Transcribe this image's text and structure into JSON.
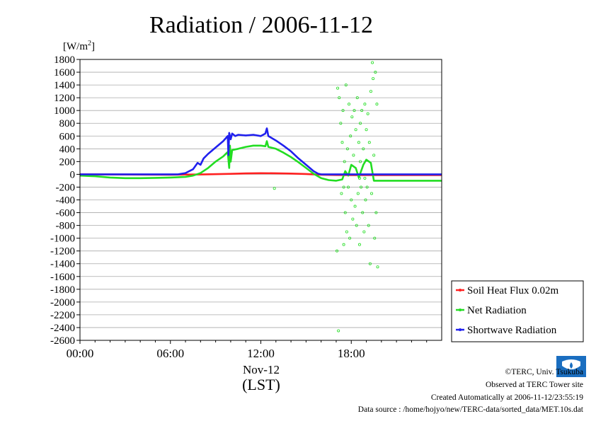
{
  "chart_data": {
    "type": "line",
    "title": "Radiation / 2006-11-12",
    "ylabel_unit": "[W/m",
    "ylabel_sup": "2",
    "ylabel_close": "]",
    "ylim": [
      -2600,
      1800
    ],
    "y_ticks": [
      "1800",
      "1600",
      "1400",
      "1200",
      "1000",
      "800",
      "600",
      "400",
      "200",
      "0",
      "-200",
      "-400",
      "-600",
      "-800",
      "-1000",
      "-1200",
      "-1400",
      "-1600",
      "-1800",
      "-2000",
      "-2200",
      "-2400",
      "-2600"
    ],
    "xlim": [
      0,
      24
    ],
    "x_ticks": [
      {
        "h": 0,
        "label": "00:00"
      },
      {
        "h": 6,
        "label": "06:00"
      },
      {
        "h": 12,
        "label": "12:00"
      },
      {
        "h": 18,
        "label": "18:00"
      }
    ],
    "date_label": "Nov-12",
    "xlabel": "(LST)",
    "grid": "horizontal",
    "legend_position": "bottom-right",
    "series": [
      {
        "name": "Soil Heat Flux 0.02m",
        "color": "#ff2020",
        "points": [
          [
            0,
            0
          ],
          [
            6,
            -5
          ],
          [
            8,
            -2
          ],
          [
            10,
            8
          ],
          [
            11,
            15
          ],
          [
            12,
            18
          ],
          [
            13,
            17
          ],
          [
            14,
            12
          ],
          [
            15,
            6
          ],
          [
            16,
            -5
          ],
          [
            17,
            -10
          ],
          [
            18,
            -12
          ],
          [
            20,
            -12
          ],
          [
            24,
            -12
          ]
        ]
      },
      {
        "name": "Net Radiation",
        "color": "#22dd22",
        "points": [
          [
            0,
            -20
          ],
          [
            1,
            -30
          ],
          [
            2,
            -50
          ],
          [
            3,
            -60
          ],
          [
            4,
            -60
          ],
          [
            5,
            -55
          ],
          [
            6,
            -50
          ],
          [
            7,
            -40
          ],
          [
            7.5,
            -20
          ],
          [
            8,
            20
          ],
          [
            8.5,
            100
          ],
          [
            9,
            200
          ],
          [
            9.5,
            280
          ],
          [
            9.8,
            350
          ],
          [
            9.9,
            100
          ],
          [
            9.95,
            450
          ],
          [
            10,
            200
          ],
          [
            10.1,
            380
          ],
          [
            10.5,
            400
          ],
          [
            11,
            430
          ],
          [
            11.5,
            450
          ],
          [
            12,
            450
          ],
          [
            12.3,
            440
          ],
          [
            12.4,
            520
          ],
          [
            12.5,
            430
          ],
          [
            13,
            400
          ],
          [
            13.5,
            340
          ],
          [
            14,
            270
          ],
          [
            14.5,
            190
          ],
          [
            15,
            100
          ],
          [
            15.5,
            10
          ],
          [
            16,
            -60
          ],
          [
            16.5,
            -90
          ],
          [
            17,
            -100
          ],
          [
            17.4,
            -80
          ],
          [
            17.6,
            50
          ],
          [
            17.8,
            -20
          ],
          [
            18,
            150
          ],
          [
            18.3,
            100
          ],
          [
            18.5,
            -50
          ],
          [
            18.8,
            150
          ],
          [
            19,
            230
          ],
          [
            19.3,
            180
          ],
          [
            19.5,
            -100
          ],
          [
            20,
            -100
          ],
          [
            21,
            -100
          ],
          [
            22,
            -100
          ],
          [
            23,
            -100
          ],
          [
            24,
            -100
          ]
        ]
      },
      {
        "name": "Shortwave Radiation",
        "color": "#2020ee",
        "points": [
          [
            0,
            0
          ],
          [
            6.5,
            0
          ],
          [
            7,
            20
          ],
          [
            7.5,
            80
          ],
          [
            7.8,
            180
          ],
          [
            8,
            150
          ],
          [
            8.2,
            250
          ],
          [
            8.5,
            320
          ],
          [
            9,
            420
          ],
          [
            9.5,
            520
          ],
          [
            9.8,
            600
          ],
          [
            9.85,
            300
          ],
          [
            9.9,
            650
          ],
          [
            10,
            550
          ],
          [
            10.1,
            640
          ],
          [
            10.3,
            600
          ],
          [
            10.5,
            620
          ],
          [
            11,
            610
          ],
          [
            11.5,
            620
          ],
          [
            12,
            600
          ],
          [
            12.3,
            640
          ],
          [
            12.4,
            720
          ],
          [
            12.5,
            600
          ],
          [
            13,
            530
          ],
          [
            13.5,
            450
          ],
          [
            14,
            360
          ],
          [
            14.5,
            250
          ],
          [
            15,
            150
          ],
          [
            15.5,
            50
          ],
          [
            15.8,
            10
          ],
          [
            16,
            0
          ],
          [
            24,
            0
          ]
        ]
      }
    ],
    "scatter": {
      "color": "#22dd22",
      "points": [
        [
          17.1,
          1350
        ],
        [
          17.2,
          1200
        ],
        [
          17.3,
          800
        ],
        [
          17.35,
          -300
        ],
        [
          17.4,
          500
        ],
        [
          17.45,
          1000
        ],
        [
          17.5,
          -1100
        ],
        [
          17.55,
          200
        ],
        [
          17.6,
          -600
        ],
        [
          17.65,
          1400
        ],
        [
          17.7,
          -900
        ],
        [
          17.75,
          400
        ],
        [
          17.8,
          -200
        ],
        [
          17.85,
          1100
        ],
        [
          17.9,
          -1000
        ],
        [
          17.95,
          600
        ],
        [
          18,
          -400
        ],
        [
          18.05,
          900
        ],
        [
          18.1,
          -700
        ],
        [
          18.15,
          300
        ],
        [
          18.2,
          1000
        ],
        [
          18.25,
          -500
        ],
        [
          18.3,
          700
        ],
        [
          18.35,
          -800
        ],
        [
          18.4,
          1200
        ],
        [
          18.45,
          -300
        ],
        [
          18.5,
          500
        ],
        [
          18.55,
          -1100
        ],
        [
          18.6,
          800
        ],
        [
          18.65,
          -200
        ],
        [
          18.7,
          1000
        ],
        [
          18.75,
          -600
        ],
        [
          18.8,
          400
        ],
        [
          18.85,
          -900
        ],
        [
          18.9,
          1100
        ],
        [
          18.95,
          -400
        ],
        [
          19,
          700
        ],
        [
          19.05,
          -200
        ],
        [
          19.1,
          950
        ],
        [
          19.15,
          -800
        ],
        [
          19.2,
          500
        ],
        [
          19.25,
          -1400
        ],
        [
          19.3,
          1300
        ],
        [
          19.35,
          -300
        ],
        [
          19.4,
          1750
        ],
        [
          19.45,
          1500
        ],
        [
          19.5,
          300
        ],
        [
          19.55,
          -1000
        ],
        [
          19.6,
          1600
        ],
        [
          19.65,
          -600
        ],
        [
          19.7,
          1100
        ],
        [
          19.75,
          -1450
        ],
        [
          17.05,
          -1200
        ],
        [
          17.15,
          -2450
        ],
        [
          17.5,
          -200
        ],
        [
          18.55,
          -60
        ],
        [
          18.6,
          200
        ],
        [
          18.9,
          -60
        ],
        [
          12.9,
          -220
        ]
      ]
    }
  },
  "credits": {
    "copyright": "©TERC, Univ. Tsukuba",
    "observed": "Observed at TERC Tower site",
    "created": "Created Automatically at 2006-11-12/23:55:19",
    "source": "Data source : /home/hojyo/new/TERC-data/sorted_data/MET.10s.dat"
  },
  "logo": {
    "text": "TERC",
    "color": "#1a6ec0"
  }
}
